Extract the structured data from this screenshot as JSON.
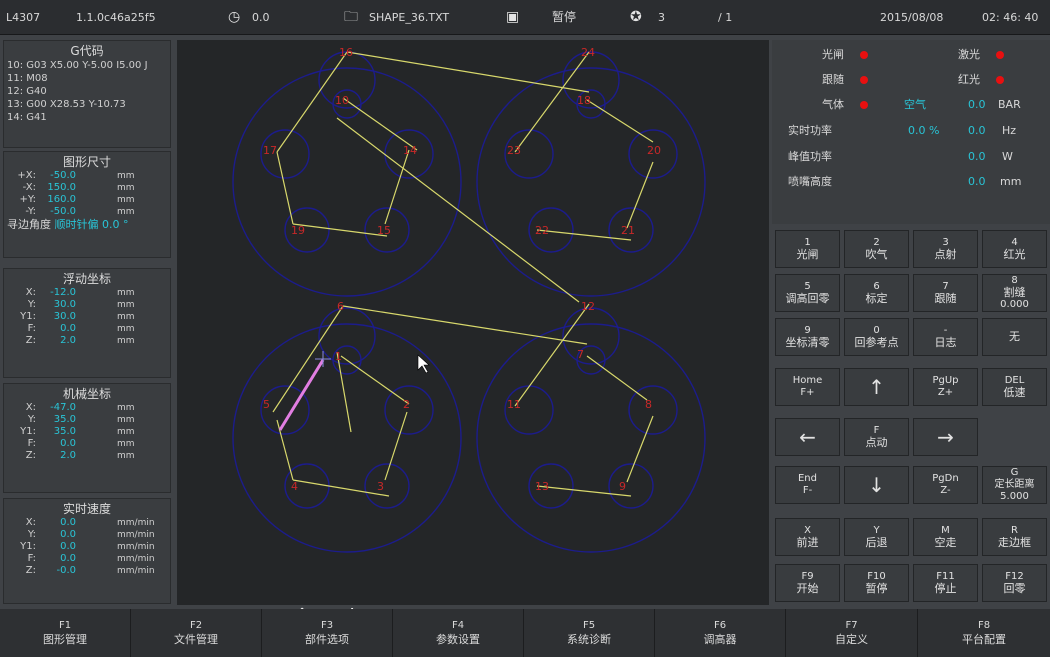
{
  "topbar": {
    "machine_id": "L4307",
    "version": "1.1.0c46a25f5",
    "speed": "0.0",
    "file_name": "SHAPE_36.TXT",
    "state": "暂停",
    "count": "3",
    "pages": "/ 1",
    "date": "2015/08/08",
    "time": "02: 46: 40",
    "icons": {
      "speed": "gauge-icon",
      "file": "folder-icon",
      "state": "monitor-icon",
      "count": "target-icon"
    }
  },
  "gcode": {
    "title": "G代码",
    "lines": [
      "10: G03 X5.00 Y-5.00 I5.00 J",
      "11: M08",
      "12: G40",
      "13: G00 X28.53 Y-10.73",
      "14: G41"
    ]
  },
  "shape_size": {
    "title": "图形尺寸",
    "rows": [
      {
        "label": "+X:",
        "value": "-50.0",
        "unit": "mm"
      },
      {
        "label": "-X:",
        "value": "150.0",
        "unit": "mm"
      },
      {
        "label": "+Y:",
        "value": "160.0",
        "unit": "mm"
      },
      {
        "label": "-Y:",
        "value": "-50.0",
        "unit": "mm"
      }
    ],
    "edge_angle_label": "寻边角度",
    "edge_angle_dir": "顺时针偏",
    "edge_angle_value": "0.0 °"
  },
  "float_coord": {
    "title": "浮动坐标",
    "rows": [
      {
        "label": "X:",
        "value": "-12.0",
        "unit": "mm"
      },
      {
        "label": "Y:",
        "value": "30.0",
        "unit": "mm"
      },
      {
        "label": "Y1:",
        "value": "30.0",
        "unit": "mm"
      },
      {
        "label": "F:",
        "value": "0.0",
        "unit": "mm"
      },
      {
        "label": "Z:",
        "value": "2.0",
        "unit": "mm"
      }
    ]
  },
  "machine_coord": {
    "title": "机械坐标",
    "rows": [
      {
        "label": "X:",
        "value": "-47.0",
        "unit": "mm"
      },
      {
        "label": "Y:",
        "value": "35.0",
        "unit": "mm"
      },
      {
        "label": "Y1:",
        "value": "35.0",
        "unit": "mm"
      },
      {
        "label": "F:",
        "value": "0.0",
        "unit": "mm"
      },
      {
        "label": "Z:",
        "value": "2.0",
        "unit": "mm"
      }
    ]
  },
  "realtime_speed": {
    "title": "实时速度",
    "rows": [
      {
        "label": "X:",
        "value": "0.0",
        "unit": "mm/min"
      },
      {
        "label": "Y:",
        "value": "0.0",
        "unit": "mm/min"
      },
      {
        "label": "Y1:",
        "value": "0.0",
        "unit": "mm/min"
      },
      {
        "label": "F:",
        "value": "0.0",
        "unit": "mm/min"
      },
      {
        "label": "Z:",
        "value": "-0.0",
        "unit": "mm/min"
      }
    ]
  },
  "status": {
    "shutter": "光闸",
    "laser": "激光",
    "follow": "跟随",
    "red_light": "红光",
    "gas": "气体",
    "gas_type": "空气",
    "gas_value": "0.0",
    "gas_unit": "BAR",
    "rt_power": "实时功率",
    "rt_power_value": "0.0 %",
    "freq_value": "0.0",
    "freq_unit": "Hz",
    "peak_power": "峰值功率",
    "peak_value": "0.0",
    "peak_unit": "W",
    "nozzle_height": "喷嘴高度",
    "nozzle_value": "0.0",
    "nozzle_unit": "mm",
    "indicator_color": "#e81010"
  },
  "buttons": [
    {
      "key": "1",
      "label": "光闸"
    },
    {
      "key": "2",
      "label": "吹气"
    },
    {
      "key": "3",
      "label": "点射"
    },
    {
      "key": "4",
      "label": "红光"
    },
    {
      "key": "5",
      "label": "调高回零"
    },
    {
      "key": "6",
      "label": "标定"
    },
    {
      "key": "7",
      "label": "跟随"
    },
    {
      "key": "8",
      "label": "割缝",
      "extra": "0.000"
    },
    {
      "key": "9",
      "label": "坐标清零"
    },
    {
      "key": "0",
      "label": "回参考点"
    },
    {
      "key": "-",
      "label": "日志"
    },
    {
      "key": "",
      "label": "无"
    },
    {
      "key": "Home",
      "label": "F+"
    },
    {
      "key": "",
      "label": "↑"
    },
    {
      "key": "PgUp",
      "label": "Z+"
    },
    {
      "key": "DEL",
      "label": "低速"
    },
    {
      "key": "",
      "label": "←"
    },
    {
      "key": "F",
      "label": "点动"
    },
    {
      "key": "",
      "label": "→"
    },
    {
      "key": "End",
      "label": "F-"
    },
    {
      "key": "",
      "label": "↓"
    },
    {
      "key": "PgDn",
      "label": "Z-"
    },
    {
      "key": "G",
      "label": "定长距离",
      "extra": "5.000"
    },
    {
      "key": "X",
      "label": "前进"
    },
    {
      "key": "Y",
      "label": "后退"
    },
    {
      "key": "M",
      "label": "空走"
    },
    {
      "key": "R",
      "label": "走边框"
    },
    {
      "key": "F9",
      "label": "开始"
    },
    {
      "key": "F10",
      "label": "暂停"
    },
    {
      "key": "F11",
      "label": "停止"
    },
    {
      "key": "F12",
      "label": "回零"
    }
  ],
  "fkeys": [
    {
      "key": "F1",
      "label": "图形管理"
    },
    {
      "key": "F2",
      "label": "文件管理"
    },
    {
      "key": "F3",
      "label": "部件选项"
    },
    {
      "key": "F4",
      "label": "参数设置"
    },
    {
      "key": "F5",
      "label": "系统诊断"
    },
    {
      "key": "F6",
      "label": "调高器"
    },
    {
      "key": "F7",
      "label": "自定义"
    },
    {
      "key": "F8",
      "label": "平台配置"
    }
  ],
  "canvas": {
    "pan_left": "←",
    "pan_right": "→",
    "pan_up": "↑",
    "pan_down": "↓",
    "refresh": "↻",
    "zoom_in": "⤡",
    "zoom_out": "⤢",
    "part_labels": [
      "16",
      "10",
      "17",
      "14",
      "19",
      "15",
      "24",
      "18",
      "23",
      "20",
      "22",
      "21",
      "6",
      "1",
      "5",
      "2",
      "4",
      "3",
      "12",
      "7",
      "11",
      "8",
      "13",
      "9"
    ],
    "colors": {
      "outline": "#1c1c8c",
      "path": "#d8d86c",
      "label": "#c82828",
      "current": "#e27ee2",
      "background": "#242628"
    }
  }
}
